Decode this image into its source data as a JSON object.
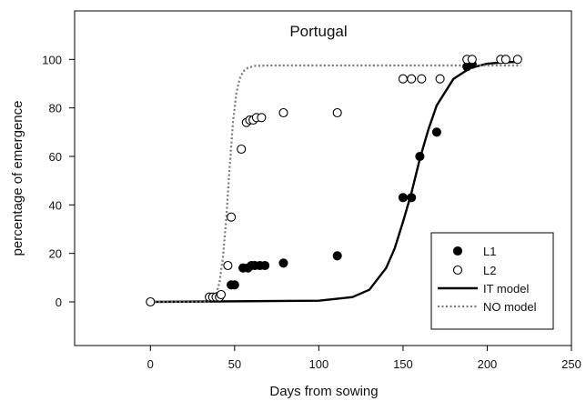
{
  "chart_data": {
    "type": "scatter",
    "title": "Portugal",
    "xlabel": "Days from sowing",
    "ylabel": "percentage of emergence",
    "xlim": [
      -45,
      250
    ],
    "ylim": [
      -18,
      120
    ],
    "xticks": [
      0,
      50,
      100,
      150,
      200,
      250
    ],
    "yticks": [
      0,
      20,
      40,
      60,
      80,
      100
    ],
    "xtick_labels": [
      "0",
      "50",
      "100",
      "150",
      "200",
      "250"
    ],
    "ytick_labels": [
      "0",
      "20",
      "40",
      "60",
      "80",
      "100"
    ],
    "legend_position": "bottom-right",
    "series": [
      {
        "name": "L1",
        "kind": "points",
        "marker": "filled-circle",
        "x": [
          48,
          50,
          55,
          58,
          60,
          62,
          65,
          68,
          79,
          111,
          150,
          155,
          160,
          170,
          188,
          191
        ],
        "y": [
          7,
          7,
          14,
          14,
          15,
          15,
          15,
          15,
          16,
          19,
          43,
          43,
          60,
          70,
          97,
          98
        ]
      },
      {
        "name": "L2",
        "kind": "points",
        "marker": "open-circle",
        "x": [
          0,
          35,
          37,
          39,
          41,
          42,
          46,
          48,
          54,
          57,
          59,
          61,
          63,
          66,
          79,
          111,
          150,
          155,
          161,
          172,
          188,
          191,
          208,
          211,
          218
        ],
        "y": [
          0,
          2,
          2,
          2,
          2,
          3,
          15,
          35,
          63,
          74,
          75,
          75,
          76,
          76,
          78,
          78,
          92,
          92,
          92,
          92,
          100,
          100,
          100,
          100,
          100
        ]
      },
      {
        "name": "IT model",
        "kind": "line",
        "style": "solid",
        "x": [
          0,
          100,
          120,
          130,
          140,
          145,
          150,
          155,
          160,
          165,
          170,
          180,
          190,
          200,
          210,
          220
        ],
        "y": [
          0,
          0.5,
          2,
          5,
          14,
          22,
          33,
          45,
          59,
          71,
          81,
          92,
          96.5,
          98.2,
          98.8,
          99
        ]
      },
      {
        "name": "NO model",
        "kind": "line",
        "style": "dotted",
        "x": [
          0,
          34,
          37,
          39,
          41,
          43,
          45,
          47,
          49,
          51,
          53,
          55,
          58,
          62,
          70,
          80,
          100,
          220
        ],
        "y": [
          0,
          0,
          1,
          3,
          8,
          18,
          34,
          55,
          74,
          86,
          92,
          95,
          96.6,
          97.3,
          97.5,
          97.5,
          97.5,
          97.5
        ]
      }
    ]
  },
  "colors": {
    "axis": "#000000",
    "points": "#000000",
    "background": "#ffffff",
    "dotted_line": "#777777"
  }
}
